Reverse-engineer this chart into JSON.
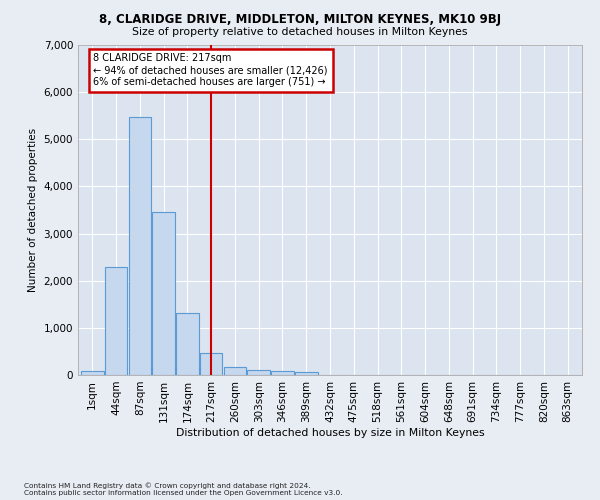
{
  "title1": "8, CLARIDGE DRIVE, MIDDLETON, MILTON KEYNES, MK10 9BJ",
  "title2": "Size of property relative to detached houses in Milton Keynes",
  "xlabel": "Distribution of detached houses by size in Milton Keynes",
  "ylabel": "Number of detached properties",
  "footnote1": "Contains HM Land Registry data © Crown copyright and database right 2024.",
  "footnote2": "Contains public sector information licensed under the Open Government Licence v3.0.",
  "bar_labels": [
    "1sqm",
    "44sqm",
    "87sqm",
    "131sqm",
    "174sqm",
    "217sqm",
    "260sqm",
    "303sqm",
    "346sqm",
    "389sqm",
    "432sqm",
    "475sqm",
    "518sqm",
    "561sqm",
    "604sqm",
    "648sqm",
    "691sqm",
    "734sqm",
    "777sqm",
    "820sqm",
    "863sqm"
  ],
  "bar_values": [
    80,
    2300,
    5470,
    3450,
    1310,
    460,
    175,
    115,
    80,
    55,
    0,
    0,
    0,
    0,
    0,
    0,
    0,
    0,
    0,
    0,
    0
  ],
  "highlight_index": 5,
  "annotation_text": "8 CLARIDGE DRIVE: 217sqm\n← 94% of detached houses are smaller (12,426)\n6% of semi-detached houses are larger (751) →",
  "bar_color": "#c5d8ee",
  "bar_edge_color": "#5b9bd5",
  "highlight_line_color": "#cc0000",
  "annotation_box_color": "#cc0000",
  "bg_color": "#e8edf4",
  "plot_bg_color": "#dce4f0",
  "ylim": [
    0,
    7000
  ],
  "yticks": [
    0,
    1000,
    2000,
    3000,
    4000,
    5000,
    6000,
    7000
  ]
}
